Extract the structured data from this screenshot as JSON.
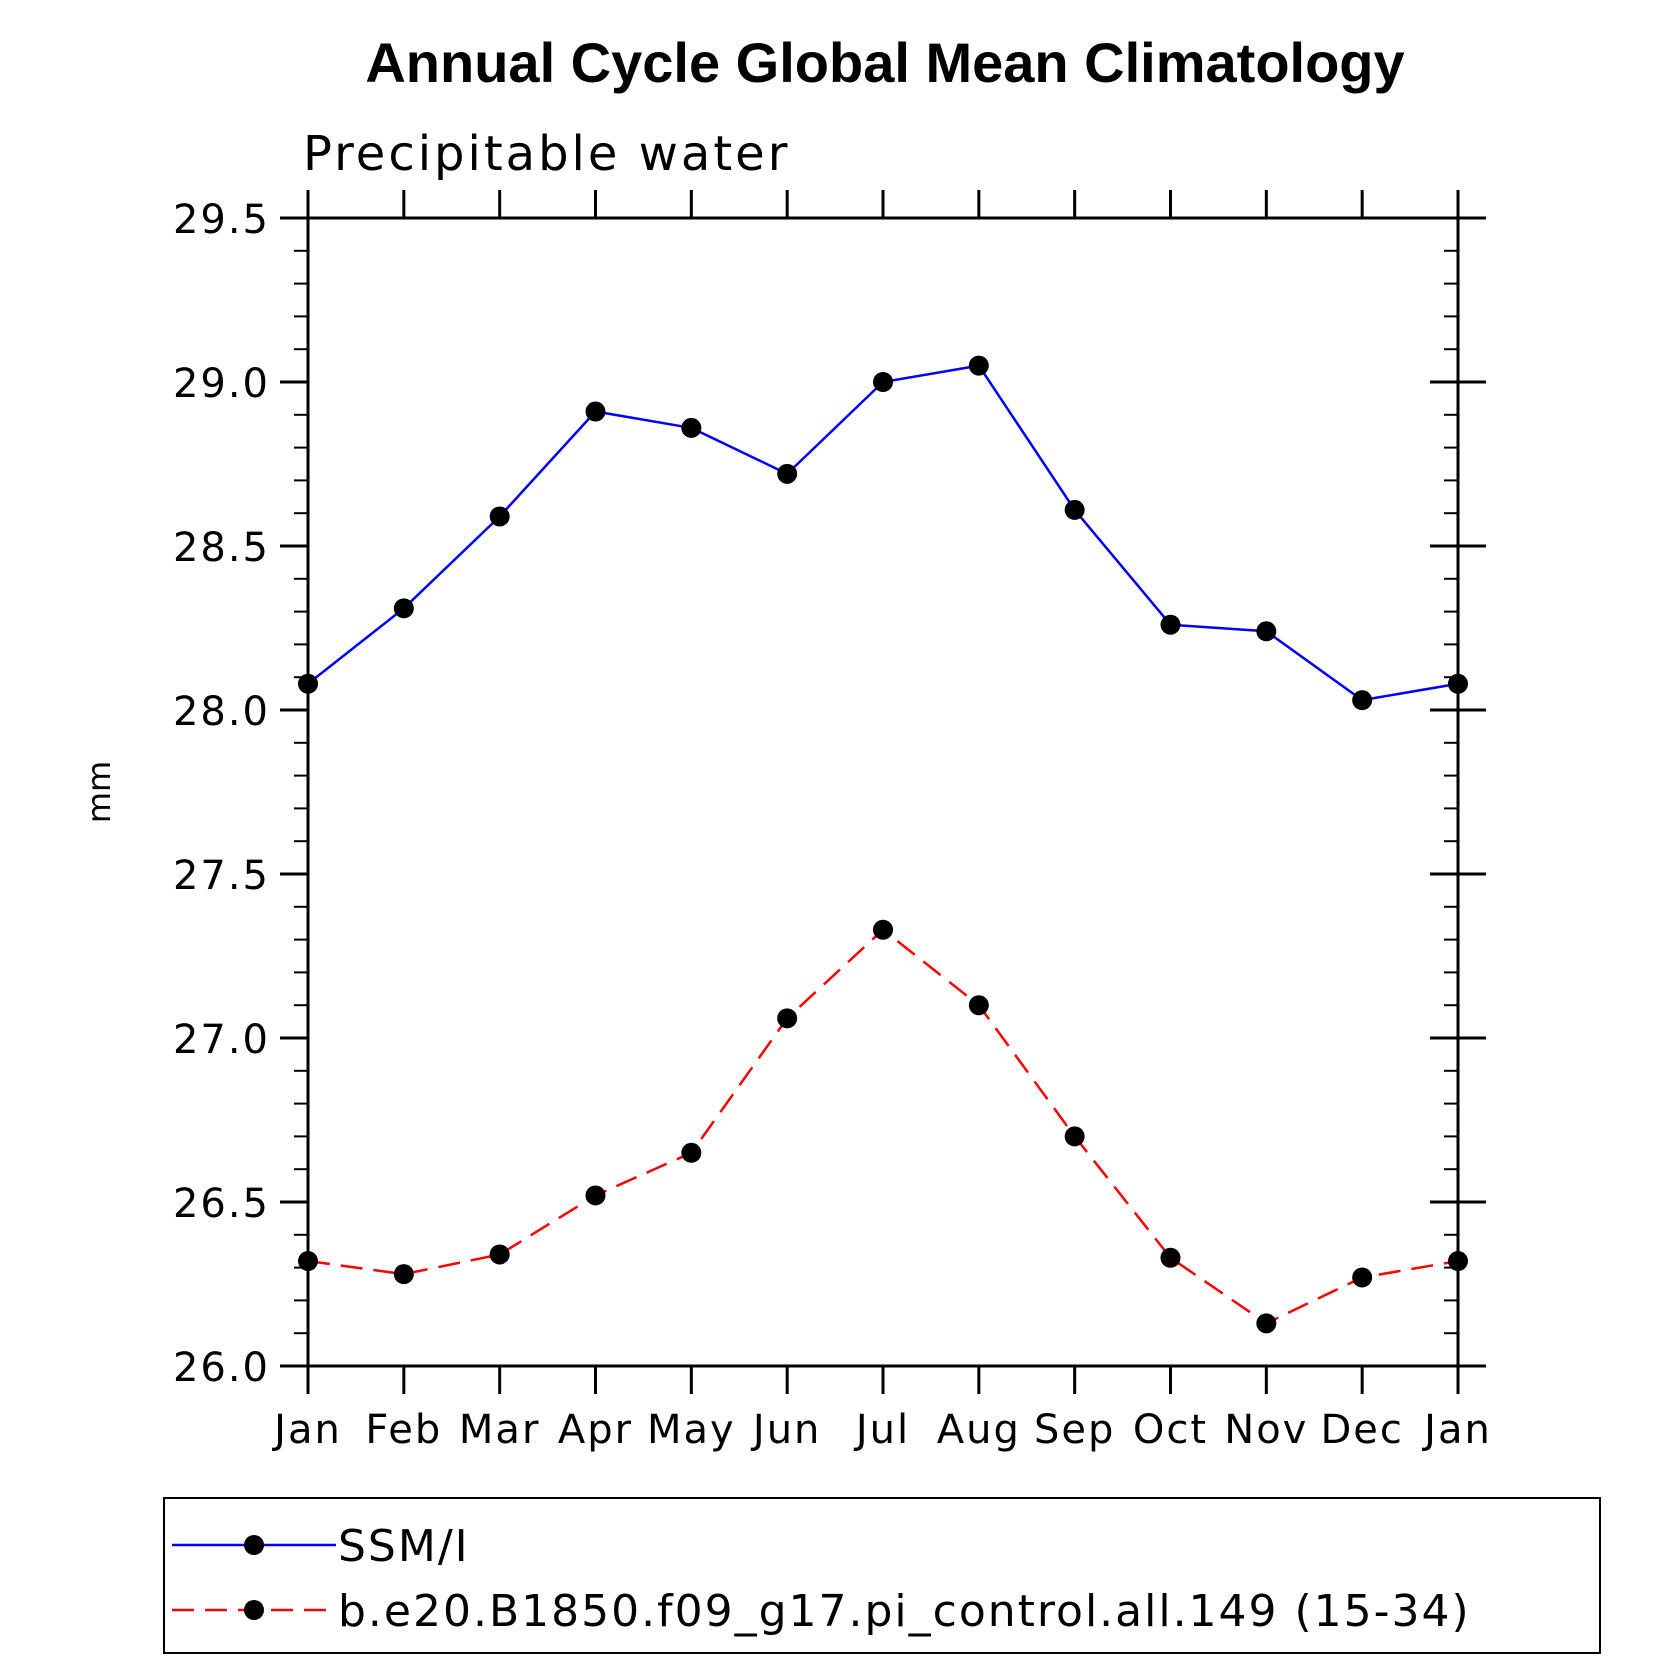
{
  "chart_data": {
    "type": "line",
    "title": "Annual Cycle Global Mean Climatology",
    "subtitle": "Precipitable water",
    "xlabel": "",
    "ylabel": "mm",
    "categories": [
      "Jan",
      "Feb",
      "Mar",
      "Apr",
      "May",
      "Jun",
      "Jul",
      "Aug",
      "Sep",
      "Oct",
      "Nov",
      "Dec",
      "Jan"
    ],
    "ylim": [
      26.0,
      29.5
    ],
    "yticks": [
      "26.0",
      "26.5",
      "27.0",
      "27.5",
      "28.0",
      "28.5",
      "29.0",
      "29.5"
    ],
    "y_minor_step": 0.1,
    "legend_position": "bottom",
    "series": [
      {
        "name": "SSM/I",
        "color": "#0000ff",
        "line_style": "solid",
        "marker": "filled-circle",
        "values": [
          28.08,
          28.31,
          28.59,
          28.91,
          28.86,
          28.72,
          29.0,
          29.05,
          28.61,
          28.26,
          28.24,
          28.03,
          28.08
        ]
      },
      {
        "name": "b.e20.B1850.f09_g17.pi_control.all.149 (15-34)",
        "color": "#ff0000",
        "line_style": "dashed",
        "marker": "filled-circle",
        "values": [
          26.32,
          26.28,
          26.34,
          26.52,
          26.65,
          27.06,
          27.33,
          27.1,
          26.7,
          26.33,
          26.13,
          26.27,
          26.32
        ]
      }
    ]
  }
}
